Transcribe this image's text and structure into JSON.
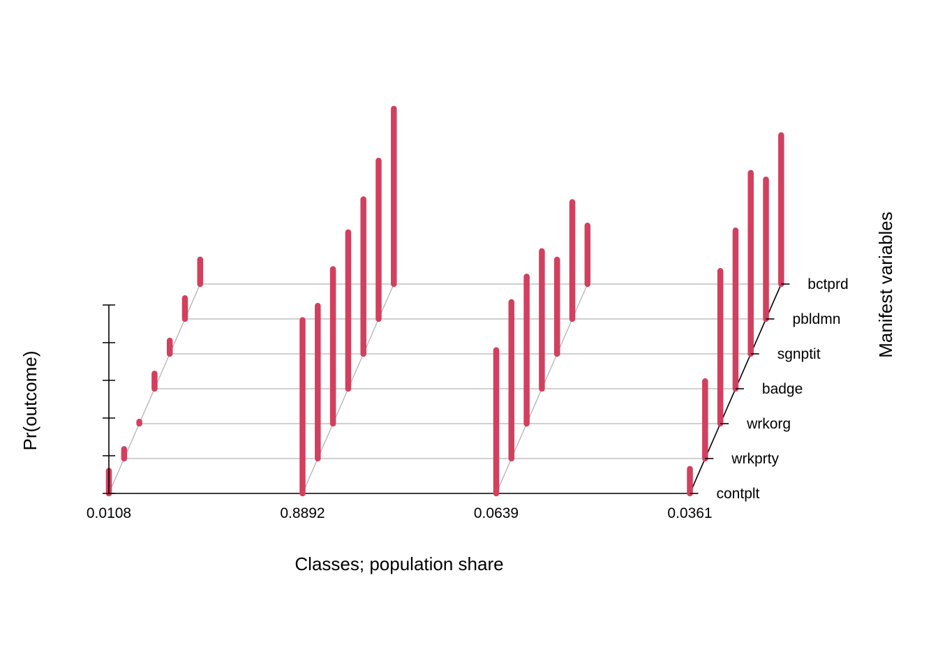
{
  "chart_data": {
    "type": "bar",
    "subtype": "3d-lca-profile",
    "xlabel": "Classes; population share",
    "ylabel": "Pr(outcome)",
    "zlabel": "Manifest variables",
    "classes": [
      "0.0108",
      "0.8892",
      "0.0639",
      "0.0361"
    ],
    "variables": [
      "contplt",
      "wrkprty",
      "wrkorg",
      "badge",
      "sgnptit",
      "pbldmn",
      "bctprd"
    ],
    "series": [
      {
        "class": "0.0108",
        "values": [
          0.12,
          0.05,
          0.01,
          0.08,
          0.07,
          0.11,
          0.13
        ]
      },
      {
        "class": "0.8892",
        "values": [
          0.92,
          0.81,
          0.82,
          0.83,
          0.82,
          0.84,
          0.93
        ]
      },
      {
        "class": "0.0639",
        "values": [
          0.76,
          0.83,
          0.78,
          0.73,
          0.5,
          0.62,
          0.31
        ]
      },
      {
        "class": "0.0361",
        "values": [
          0.13,
          0.41,
          0.81,
          0.84,
          0.96,
          0.74,
          0.79
        ]
      }
    ],
    "ylim": [
      0,
      1
    ],
    "bar_color": "#D33F5E",
    "grid": true
  }
}
